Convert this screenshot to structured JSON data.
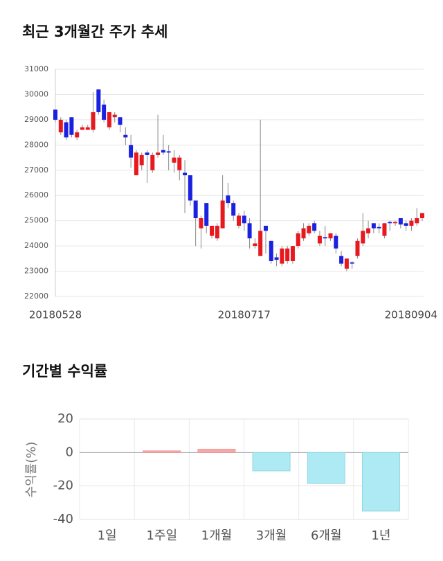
{
  "charts": [
    {
      "type": "candlestick",
      "title": "최근 3개월간 주가 추세",
      "categories": [
        "20180528",
        null,
        null,
        null,
        null,
        null,
        null,
        null,
        null,
        null,
        null,
        null,
        null,
        null,
        null,
        null,
        null,
        null,
        null,
        null,
        null,
        null,
        null,
        null,
        null,
        null,
        null,
        null,
        null,
        null,
        null,
        null,
        null,
        null,
        null,
        "20180717",
        null,
        null,
        null,
        null,
        null,
        null,
        null,
        null,
        null,
        null,
        null,
        null,
        null,
        null,
        null,
        null,
        null,
        null,
        null,
        null,
        null,
        null,
        null,
        null,
        null,
        null,
        null,
        null,
        null,
        null,
        null,
        null,
        "20180904"
      ],
      "open": [
        29400,
        28500,
        28900,
        29100,
        28300,
        28600,
        28600,
        28600,
        30200,
        29600,
        28700,
        29100,
        29100,
        28400,
        28000,
        26800,
        27200,
        27700,
        27000,
        27600,
        27800,
        27750,
        27300,
        27000,
        26900,
        26800,
        25800,
        24700,
        25700,
        24400,
        24300,
        24700,
        26000,
        25700,
        24800,
        25200,
        24900,
        24000,
        23600,
        24800,
        24200,
        23550,
        23300,
        23400,
        23400,
        24000,
        24300,
        24500,
        24900,
        24100,
        24350,
        24300,
        24400,
        23600,
        23100,
        23350,
        23600,
        24100,
        24500,
        24900,
        24750,
        24400,
        24950,
        24900,
        25100,
        24900,
        24800,
        24900,
        25100
      ],
      "high": [
        29400,
        29100,
        29000,
        29100,
        28600,
        28800,
        28800,
        30100,
        30200,
        29800,
        29300,
        29300,
        29100,
        28700,
        28400,
        27800,
        27700,
        27800,
        27700,
        29200,
        28400,
        28000,
        27800,
        27600,
        27400,
        26800,
        25800,
        25200,
        25700,
        24800,
        24900,
        26800,
        26500,
        25800,
        25300,
        25400,
        25100,
        24300,
        29000,
        24800,
        24200,
        23700,
        24000,
        24000,
        24000,
        24600,
        24900,
        24900,
        25000,
        24600,
        24800,
        24500,
        24500,
        23800,
        23500,
        23400,
        24300,
        25300,
        25000,
        24900,
        24900,
        24900,
        25000,
        25000,
        25100,
        25000,
        25100,
        25500,
        25300
      ],
      "low": [
        28900,
        28400,
        28200,
        28300,
        28200,
        28600,
        28600,
        28500,
        29200,
        28900,
        28600,
        28900,
        28500,
        28000,
        27100,
        26800,
        27000,
        26500,
        26900,
        27500,
        27600,
        27000,
        26900,
        26600,
        25300,
        25600,
        24000,
        23900,
        24500,
        24300,
        24200,
        24700,
        25500,
        25000,
        24700,
        24600,
        23900,
        23900,
        23600,
        23700,
        23300,
        23200,
        23200,
        23300,
        23300,
        23900,
        24200,
        24400,
        24500,
        24000,
        24000,
        24200,
        23700,
        23200,
        23000,
        23100,
        23500,
        24000,
        24300,
        24500,
        24500,
        24300,
        24600,
        24800,
        24700,
        24600,
        24600,
        24800,
        25000
      ],
      "close": [
        29000,
        29000,
        28300,
        28400,
        28500,
        28700,
        28700,
        29300,
        29300,
        29000,
        29300,
        29200,
        28800,
        28300,
        27500,
        27700,
        27600,
        27600,
        27600,
        27700,
        27700,
        27700,
        27500,
        27500,
        26800,
        25800,
        25100,
        25100,
        24800,
        24800,
        24800,
        25800,
        25700,
        25200,
        25200,
        24900,
        24300,
        24100,
        24600,
        24600,
        23400,
        23450,
        23900,
        23900,
        24000,
        24500,
        24700,
        24800,
        24600,
        24400,
        24300,
        24500,
        23900,
        23300,
        23500,
        23300,
        24200,
        24600,
        24700,
        24700,
        24700,
        24900,
        24900,
        24950,
        24850,
        24800,
        25000,
        25100,
        25300
      ],
      "up_color": "#e8191e",
      "down_color": "#1a22e0",
      "ylim": [
        22000,
        31000
      ],
      "yticks": [
        22000,
        23000,
        24000,
        25000,
        26000,
        27000,
        28000,
        29000,
        30000,
        31000
      ],
      "grid": true
    },
    {
      "type": "bar",
      "title": "기간별 수익률",
      "y_label": "수익률(%)",
      "categories": [
        "1일",
        "1주일",
        "1개월",
        "3개월",
        "6개월",
        "1년"
      ],
      "values": [
        0,
        1,
        2,
        -11,
        -18.5,
        -35
      ],
      "positive_color": "#f6a9a9",
      "negative_color": "#aeeaf3",
      "ylim": [
        -40,
        20
      ],
      "yticks": [
        20,
        0,
        -20,
        -40
      ],
      "grid": true
    }
  ]
}
